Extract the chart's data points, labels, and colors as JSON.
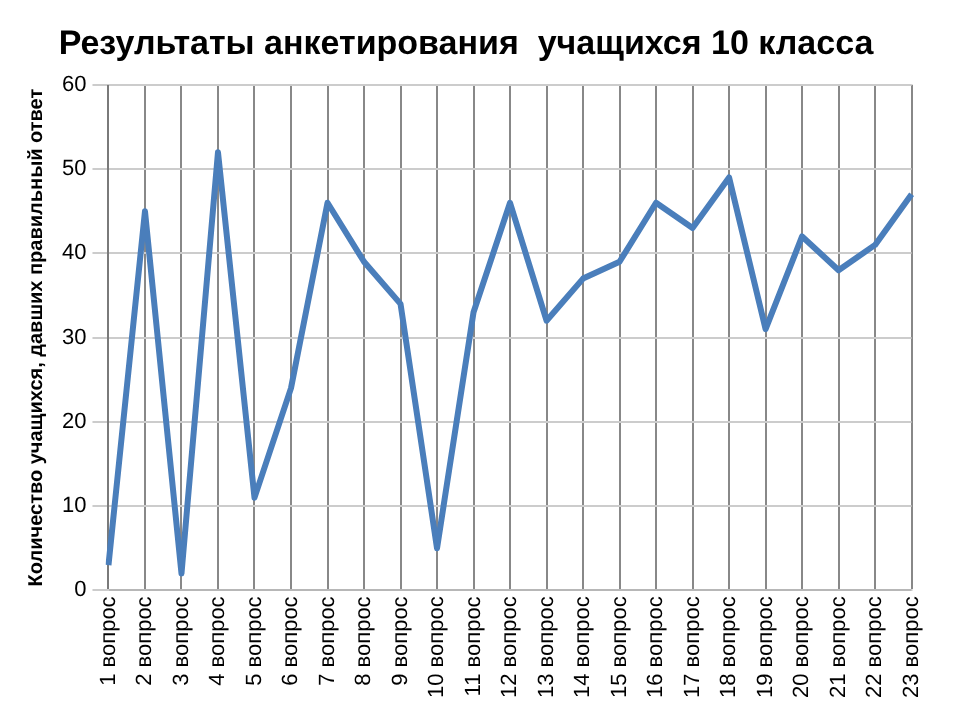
{
  "chart_data": {
    "type": "line",
    "title": "Результаты анкетирования  учащихся 10 класса",
    "ylabel": "Количество учащихся, давших правильный ответ",
    "categories": [
      "1 вопрос",
      "2 вопрос",
      "3 вопрос",
      "4 вопрос",
      "5 вопрос",
      "6 вопрос",
      "7 вопрос",
      "8 вопрос",
      "9 вопрос",
      "10 вопрос",
      "11 вопрос",
      "12 вопрос",
      "13 вопрос",
      "14 вопрос",
      "15 вопрос",
      "16 вопрос",
      "17 вопрос",
      "18 вопрос",
      "19 вопрос",
      "20 вопрос",
      "21 вопрос",
      "22 вопрос",
      "23 вопрос"
    ],
    "series": [
      {
        "color": "#4a7ebb",
        "values": [
          3,
          45,
          2,
          52,
          11,
          24,
          46,
          39,
          34,
          5,
          33,
          46,
          32,
          37,
          39,
          46,
          43,
          49,
          31,
          42,
          38,
          41,
          47
        ]
      }
    ],
    "ylim": [
      0,
      60
    ],
    "yticks": [
      0,
      10,
      20,
      30,
      40,
      50,
      60
    ],
    "grid": true,
    "legend": false,
    "marker": "none",
    "line_style": "solid"
  }
}
